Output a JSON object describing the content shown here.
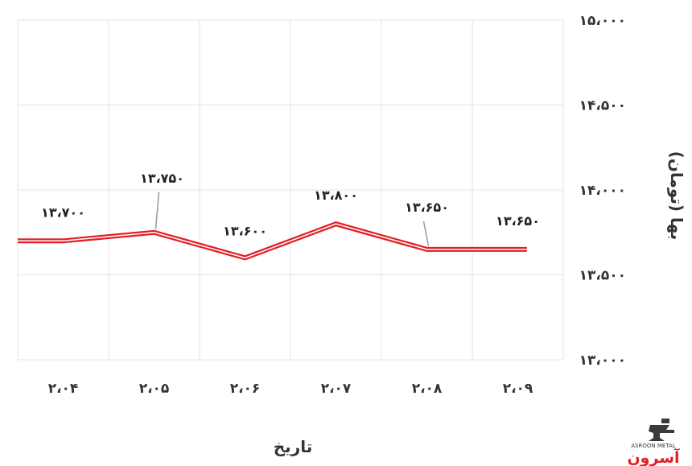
{
  "chart_data": {
    "type": "line",
    "title": "",
    "xlabel": "تاریخ",
    "ylabel": "بها (تومان)",
    "categories": [
      "۲،۰۴",
      "۲،۰۵",
      "۲،۰۶",
      "۲،۰۷",
      "۲،۰۸",
      "۲،۰۹"
    ],
    "series": [
      {
        "values": [
          13700,
          13750,
          13600,
          13800,
          13650,
          13650
        ],
        "labels": [
          "۱۳،۷۰۰",
          "۱۳،۷۵۰",
          "۱۳،۶۰۰",
          "۱۳،۸۰۰",
          "۱۳،۶۵۰",
          "۱۳،۶۵۰"
        ],
        "color": "#e41e26"
      }
    ],
    "ylim": [
      13000,
      15000
    ],
    "yticks": [
      13000,
      13500,
      14000,
      14500,
      15000
    ],
    "ytick_labels": [
      "۱۳،۰۰۰",
      "۱۳،۵۰۰",
      "۱۴،۰۰۰",
      "۱۴،۵۰۰",
      "۱۵،۰۰۰"
    ],
    "grid": true,
    "y_axis_side": "right"
  },
  "watermark": {
    "text": "آسرون",
    "subtext": "ASROON METAL",
    "color": "#e41e26"
  }
}
